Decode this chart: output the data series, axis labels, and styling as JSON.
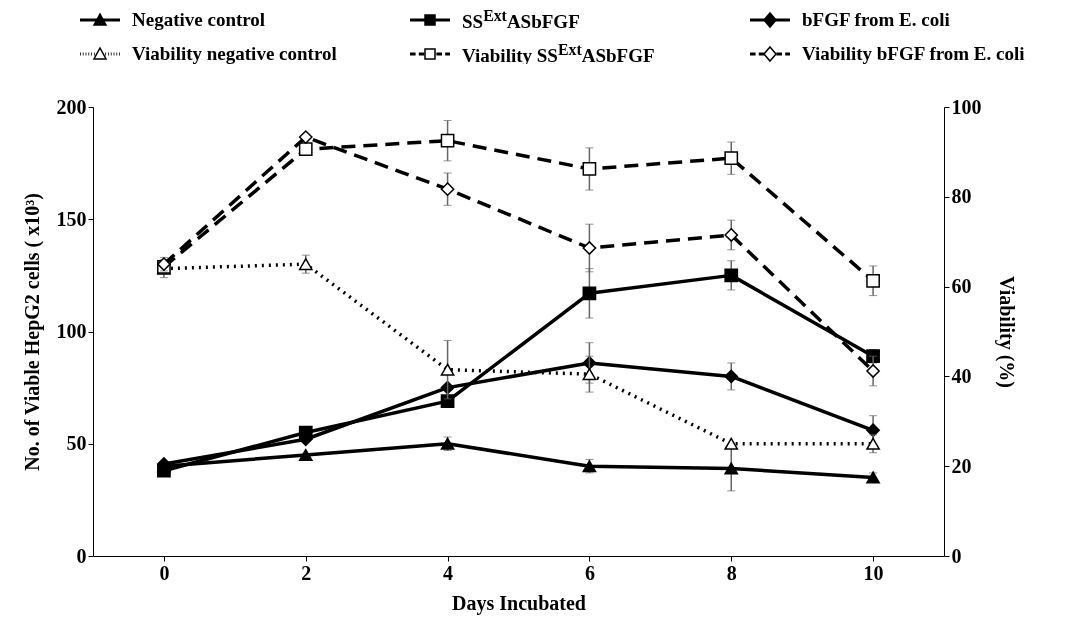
{
  "chart_data": {
    "type": "line",
    "xlabel": "Days Incubated",
    "ylabel": "No. of Viable HepG2 cells ( x10³)",
    "y2label": "Viability (%)",
    "x": [
      0,
      2,
      4,
      6,
      8,
      10
    ],
    "xlim": [
      -1,
      11
    ],
    "xticks": [
      0,
      2,
      4,
      6,
      8,
      10
    ],
    "ylim": [
      0,
      200
    ],
    "yticks": [
      0,
      50,
      100,
      150,
      200
    ],
    "y2lim": [
      0,
      100
    ],
    "y2ticks": [
      0,
      20,
      40,
      60,
      80,
      100
    ],
    "grid": false,
    "legend": "top",
    "series": [
      {
        "name": "Negative control",
        "color": "#000000",
        "marker": "triangle",
        "line_style": "solid",
        "values": [
          40,
          45,
          50,
          40,
          39,
          35
        ],
        "errors": [
          null,
          null,
          3,
          3,
          10,
          2
        ]
      },
      {
        "name": "SS$^{Ext}$ASbFGF",
        "color": "#000000",
        "marker": "square",
        "line_style": "solid",
        "values": [
          38,
          55,
          69,
          117,
          125,
          89
        ],
        "errors": [
          null,
          null,
          null,
          11,
          6.5,
          3
        ]
      },
      {
        "name": "bFGF from E. coli",
        "color": "#000000",
        "marker": "diamond",
        "line_style": "solid",
        "values": [
          41,
          52,
          75,
          86,
          80,
          56
        ],
        "errors": [
          null,
          null,
          null,
          9,
          6,
          6.5
        ]
      },
      {
        "name": "Viability  negative control",
        "color": "#000000",
        "marker": "triangle",
        "line_style": "dotted",
        "axis": "y2",
        "values": [
          64,
          65,
          41.5,
          40.5,
          25,
          25
        ],
        "errors": [
          2,
          2,
          6.5,
          4,
          null,
          2
        ]
      },
      {
        "name": "Viability  SS$^{Ext}$ASbFGF",
        "color": "#000000",
        "marker": "square",
        "line_style": "dashed",
        "axis": "y2",
        "values": [
          64.4,
          90.6,
          92.5,
          86.2,
          88.6,
          61.3
        ],
        "errors": [
          null,
          null,
          4.5,
          4.7,
          3.6,
          3.3
        ]
      },
      {
        "name": "Viability  bFGF from E. coli",
        "color": "#000000",
        "marker": "diamond",
        "line_style": "dashed",
        "axis": "y2",
        "values": [
          65,
          93.3,
          81.7,
          68.6,
          71.5,
          41.2
        ],
        "errors": [
          1.5,
          null,
          3.6,
          5.3,
          3.3,
          3.3
        ]
      }
    ]
  }
}
